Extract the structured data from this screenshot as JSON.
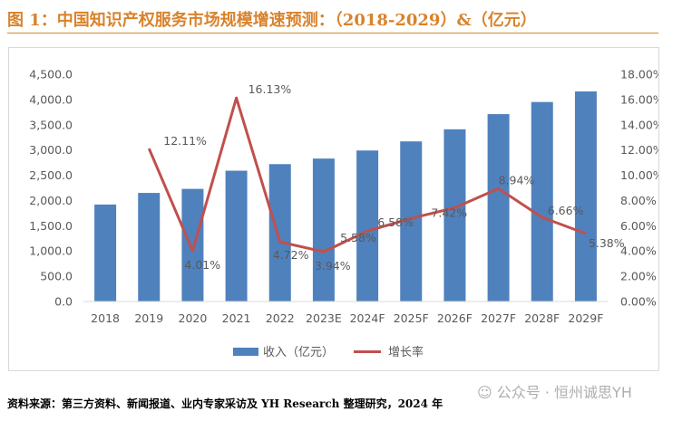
{
  "figure": {
    "title": "图 1：中国知识产权服务市场规模增速预测：（2018-2029）&（亿元）",
    "source": "资料来源：第三方资料、新闻报道、业内专家采访及 YH Research 整理研究，2024 年",
    "watermark": "公众号 · 恒州诚思YH"
  },
  "chart_data": {
    "type": "bar+line",
    "categories": [
      "2018",
      "2019",
      "2020",
      "2021",
      "2022",
      "2023E",
      "2024F",
      "2025F",
      "2026F",
      "2027F",
      "2028F",
      "2029F"
    ],
    "series": [
      {
        "name": "收入（亿元）",
        "type": "bar",
        "axis": "left",
        "values": [
          1920,
          2150,
          2230,
          2590,
          2720,
          2830,
          2990,
          3170,
          3410,
          3710,
          3950,
          4160
        ]
      },
      {
        "name": "增长率",
        "type": "line",
        "axis": "right",
        "values": [
          null,
          12.11,
          4.01,
          16.13,
          4.72,
          3.94,
          5.58,
          6.58,
          7.42,
          8.94,
          6.66,
          5.38
        ],
        "labels": [
          "",
          "12.11%",
          "4.01%",
          "16.13%",
          "4.72%",
          "3.94%",
          "5.58%",
          "6.58%",
          "7.42%",
          "8.94%",
          "6.66%",
          "5.38%"
        ]
      }
    ],
    "left_axis": {
      "ylim": [
        0,
        4500
      ],
      "ticks": [
        0,
        500,
        1000,
        1500,
        2000,
        2500,
        3000,
        3500,
        4000,
        4500
      ],
      "tick_labels": [
        "0.0",
        "500.0",
        "1,000.0",
        "1,500.0",
        "2,000.0",
        "2,500.0",
        "3,000.0",
        "3,500.0",
        "4,000.0",
        "4,500.0"
      ]
    },
    "right_axis": {
      "ylim": [
        0,
        18
      ],
      "ticks": [
        0,
        2,
        4,
        6,
        8,
        10,
        12,
        14,
        16,
        18
      ],
      "tick_labels": [
        "0.00%",
        "2.00%",
        "4.00%",
        "6.00%",
        "8.00%",
        "10.00%",
        "12.00%",
        "14.00%",
        "16.00%",
        "18.00%"
      ]
    },
    "grid": false,
    "legend": "bottom-center",
    "colors": {
      "bar": "#4f81bd",
      "line": "#c0504d",
      "text": "#595959"
    }
  }
}
